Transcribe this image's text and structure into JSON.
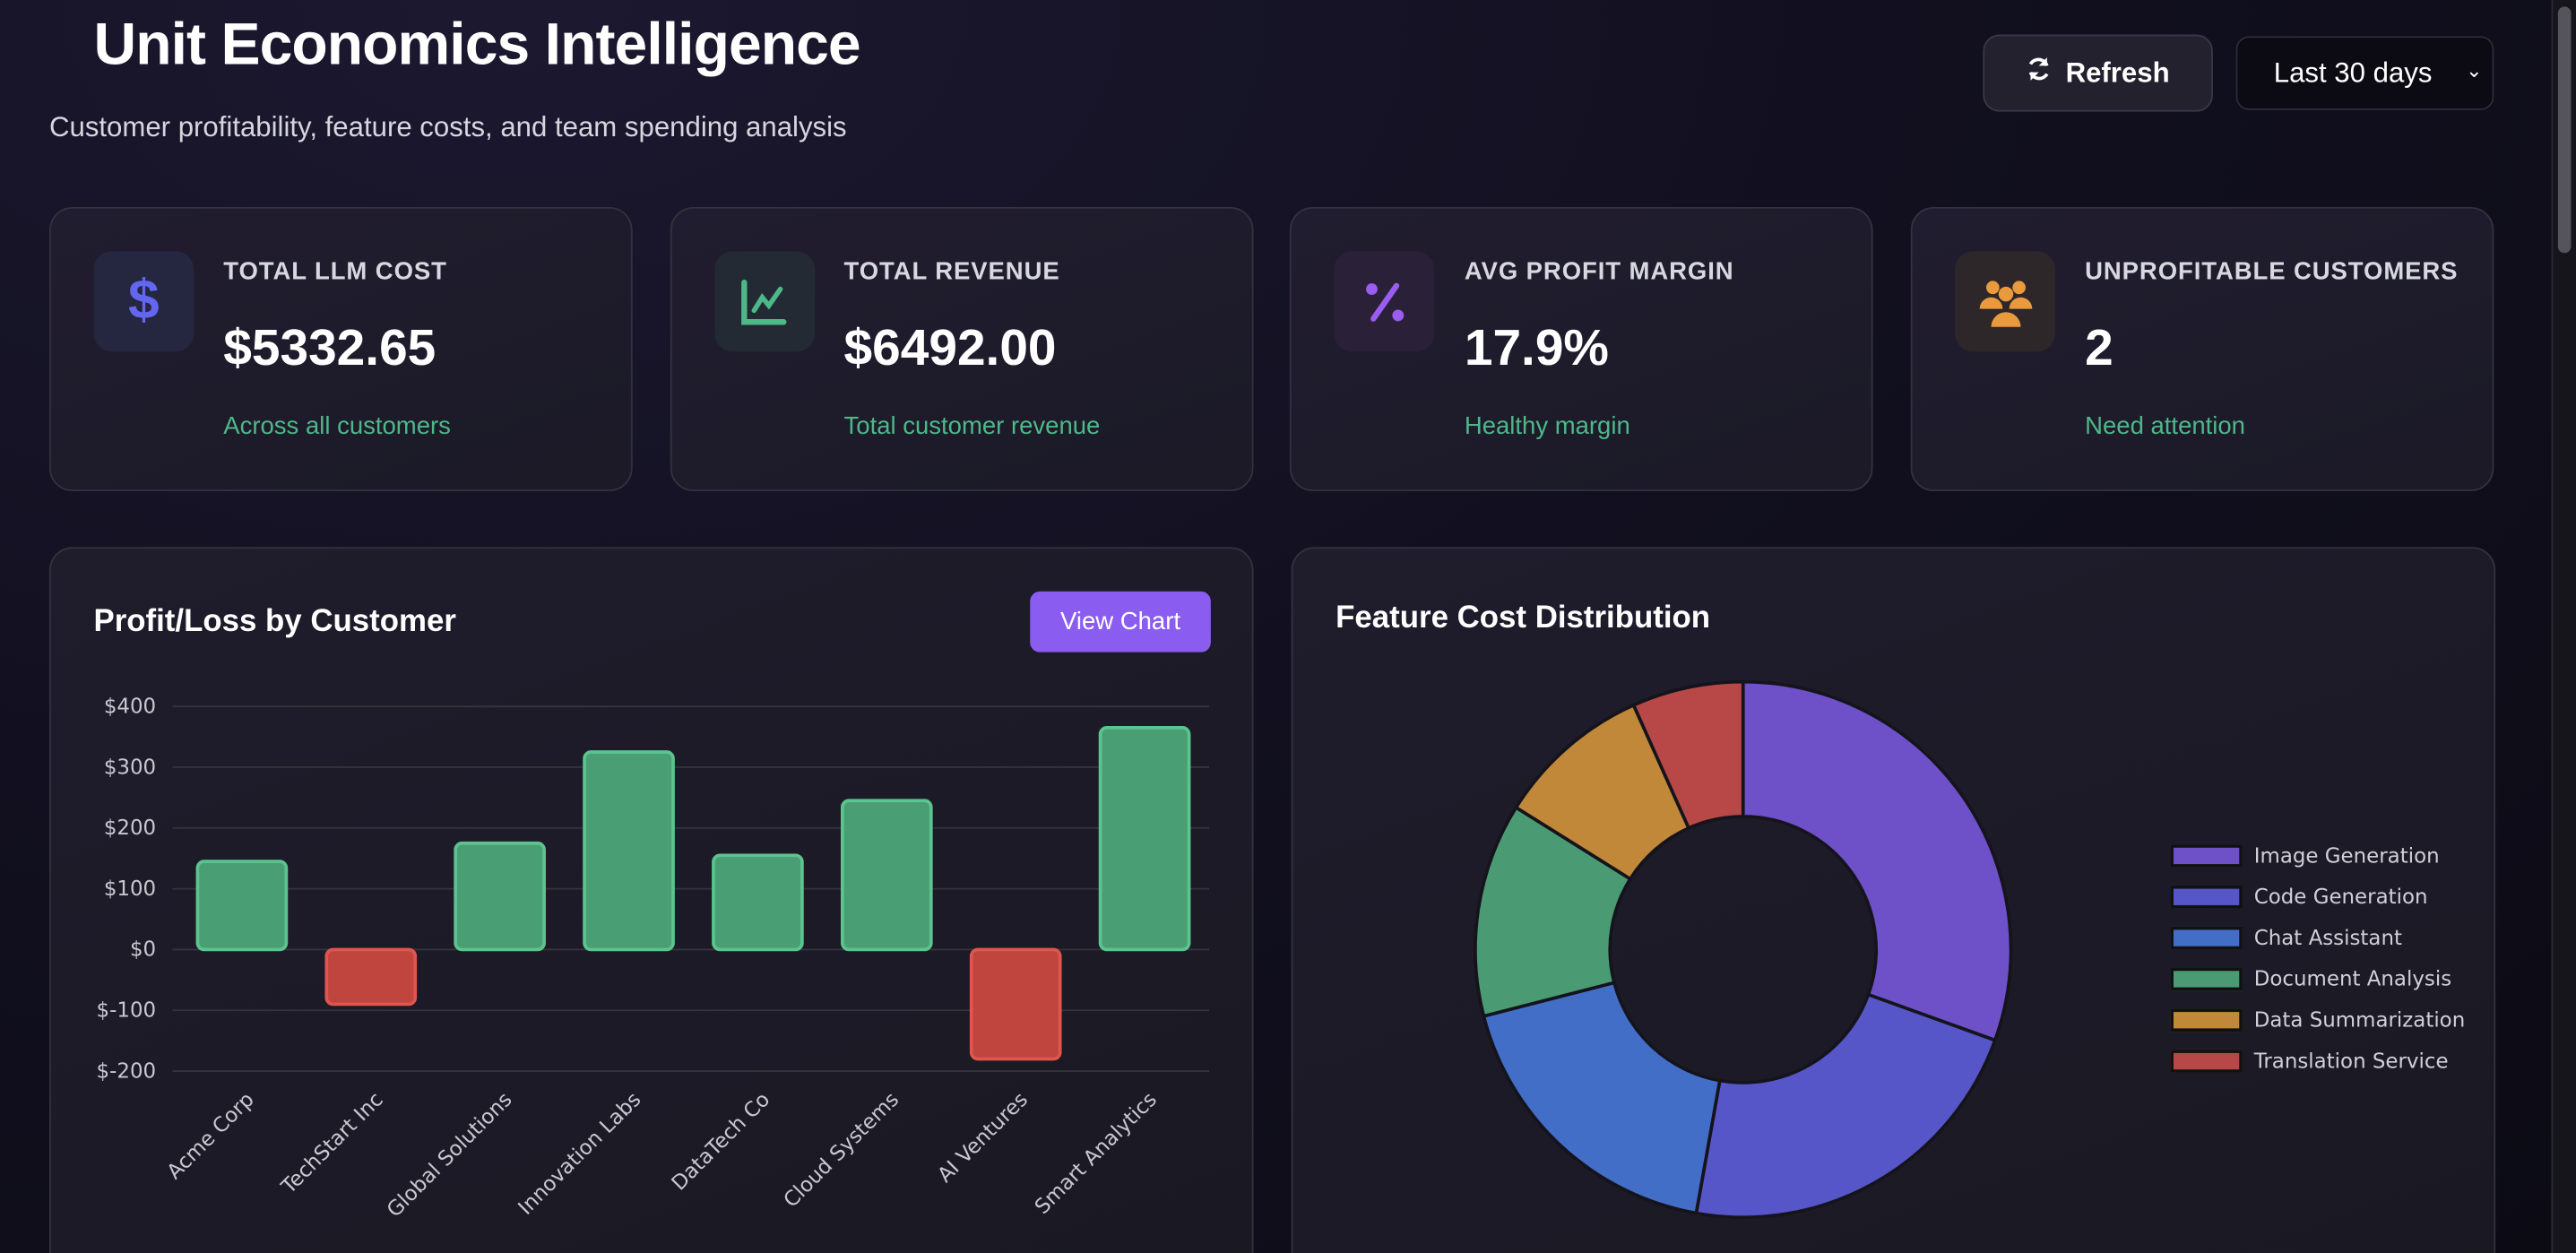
{
  "header": {
    "title": "Unit Economics Intelligence",
    "subtitle": "Customer profitability, feature costs, and team spending analysis",
    "refresh_label": "Refresh",
    "range_value": "Last 30 days"
  },
  "cards": [
    {
      "label": "TOTAL LLM COST",
      "value": "$5332.65",
      "sub": "Across all customers",
      "icon": "dollar-icon",
      "color": "#6366f1"
    },
    {
      "label": "TOTAL REVENUE",
      "value": "$6492.00",
      "sub": "Total customer revenue",
      "icon": "chart-line-icon",
      "color": "#4eb889"
    },
    {
      "label": "AVG PROFIT MARGIN",
      "value": "17.9%",
      "sub": "Healthy margin",
      "icon": "percent-icon",
      "color": "#9b5cf0"
    },
    {
      "label": "UNPROFITABLE CUSTOMERS",
      "value": "2",
      "sub": "Need attention",
      "icon": "users-icon",
      "color": "#e89a3c"
    }
  ],
  "chart_data": [
    {
      "type": "bar",
      "title": "Profit/Loss by Customer",
      "button": "View Chart",
      "categories": [
        "Acme Corp",
        "TechStart Inc",
        "Global Solutions",
        "Innovation Labs",
        "DataTech Co",
        "Cloud Systems",
        "AI Ventures",
        "Smart Analytics"
      ],
      "values": [
        145,
        -90,
        175,
        325,
        155,
        245,
        -180,
        365
      ],
      "yticks": [
        "$400",
        "$300",
        "$200",
        "$100",
        "$0",
        "$-100",
        "$-200"
      ],
      "ylim": [
        -200,
        400
      ],
      "grid": true,
      "positive_color": "#4a9e74",
      "negative_color": "#c0453f"
    },
    {
      "type": "pie",
      "title": "Feature Cost Distribution",
      "legend_position": "right",
      "labels": [
        "Image Generation",
        "Code Generation",
        "Chat Assistant",
        "Document Analysis",
        "Data Summarization",
        "Translation Service"
      ],
      "values": [
        30.5,
        22.3,
        18.2,
        12.9,
        9.4,
        6.7
      ],
      "colors": [
        "#6e50c8",
        "#5656c8",
        "#426ec8",
        "#4a9a74",
        "#c08838",
        "#b84848"
      ]
    }
  ]
}
